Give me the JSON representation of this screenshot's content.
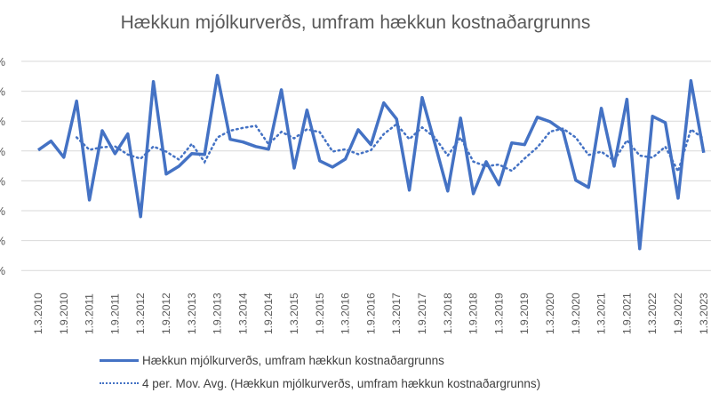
{
  "chart_data": {
    "type": "line",
    "title": "Hækkun mjólkurverðs, umfram hækkun kostnaðargrunns",
    "xlabel": "",
    "ylabel": "",
    "y_tick_labels_visible": [
      "%",
      "%",
      "%",
      "%",
      "%",
      "%",
      "%",
      "%"
    ],
    "y_units_note": "Y-axis tick values are cropped; values below are in gridline steps relative to the line at which the series starts (gridline 4 from top = 0).",
    "ylim_steps": [
      -4,
      3
    ],
    "grid": true,
    "legend_position": "bottom",
    "x_tick_labels": [
      "1.3.2010",
      "1.9.2010",
      "1.3.2011",
      "1.9.2011",
      "1.3.2012",
      "1.9.2012",
      "1.3.2013",
      "1.9.2013",
      "1.3.2014",
      "1.9.2014",
      "1.3.2015",
      "1.9.2015",
      "1.3.2016",
      "1.9.2016",
      "1.3.2017",
      "1.9.2017",
      "1.3.2018",
      "1.9.2018",
      "1.3.2019",
      "1.9.2019",
      "1.3.2020",
      "1.9.2020",
      "1.3.2021",
      "1.9.2021",
      "1.3.2022",
      "1.9.2022",
      "1.3.2023"
    ],
    "series": [
      {
        "name": "Hækkun mjólkurverðs, umfram hækkun kostnaðargrunns",
        "style": "solid",
        "color": "#4472C4",
        "values": [
          0.03,
          0.33,
          -0.21,
          1.67,
          -1.64,
          0.68,
          -0.09,
          0.57,
          -2.2,
          2.32,
          -0.77,
          -0.51,
          -0.09,
          -0.12,
          2.53,
          0.39,
          0.3,
          0.15,
          0.06,
          2.05,
          -0.57,
          1.37,
          -0.33,
          -0.54,
          -0.27,
          0.71,
          0.21,
          1.61,
          1.07,
          -1.31,
          1.79,
          0.24,
          -1.34,
          1.1,
          -1.43,
          -0.36,
          -1.13,
          0.27,
          0.21,
          1.13,
          0.98,
          0.68,
          -0.98,
          -1.22,
          1.43,
          -0.51,
          1.73,
          -3.27,
          1.16,
          0.95,
          -1.58,
          2.35,
          -0.06
        ]
      },
      {
        "name": "4 per. Mov. Avg. (Hækkun mjólkurverðs, umfram hækkun kostnaðargrunns)",
        "style": "dotted",
        "color": "#4472C4",
        "period": 4
      }
    ]
  },
  "legend": {
    "items": [
      {
        "label": "Hækkun mjólkurverðs, umfram hækkun kostnaðargrunns"
      },
      {
        "label": "4 per. Mov. Avg. (Hækkun mjólkurverðs, umfram hækkun kostnaðargrunns)"
      }
    ]
  }
}
